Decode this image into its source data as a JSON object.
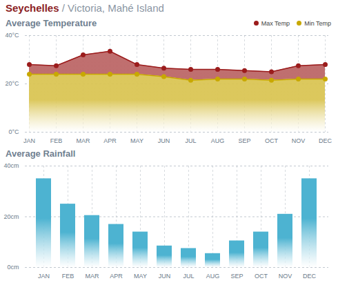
{
  "title": "Seychelles / Victoria, Mahé Island",
  "chart_data": [
    {
      "type": "area",
      "title": "Average Temperature",
      "categories": [
        "JAN",
        "FEB",
        "MAR",
        "APR",
        "MAY",
        "JUN",
        "JUL",
        "AUG",
        "SEP",
        "OCT",
        "NOV",
        "DEC"
      ],
      "series": [
        {
          "name": "Max Temp",
          "color": "#9b1c1c",
          "values": [
            28,
            27.5,
            32,
            33.5,
            28,
            26.5,
            26,
            26,
            25.5,
            25,
            27.5,
            28
          ]
        },
        {
          "name": "Min Temp",
          "color": "#c8a800",
          "values": [
            24,
            24,
            24,
            24,
            24,
            23,
            21.5,
            22,
            22,
            21.5,
            22,
            22
          ]
        }
      ],
      "ylim": [
        0,
        40
      ],
      "yticks": [
        {
          "value": 0,
          "label": "0°C"
        },
        {
          "value": 20,
          "label": "20°C"
        },
        {
          "value": 40,
          "label": "40°C"
        }
      ],
      "grid": true,
      "legend": "top-right"
    },
    {
      "type": "bar",
      "title": "Average Rainfall",
      "categories": [
        "JAN",
        "FEB",
        "MAR",
        "APR",
        "MAY",
        "JUN",
        "JUL",
        "AUG",
        "SEP",
        "OCT",
        "NOV",
        "DEC"
      ],
      "values": [
        35,
        25,
        20.5,
        17,
        14,
        8.5,
        7.5,
        5.5,
        10.5,
        14,
        21,
        35
      ],
      "color": "#4db3d1",
      "ylim": [
        0,
        40
      ],
      "yticks": [
        {
          "value": 0,
          "label": "0cm"
        },
        {
          "value": 20,
          "label": "20cm"
        },
        {
          "value": 40,
          "label": "40cm"
        }
      ],
      "grid": true
    }
  ]
}
